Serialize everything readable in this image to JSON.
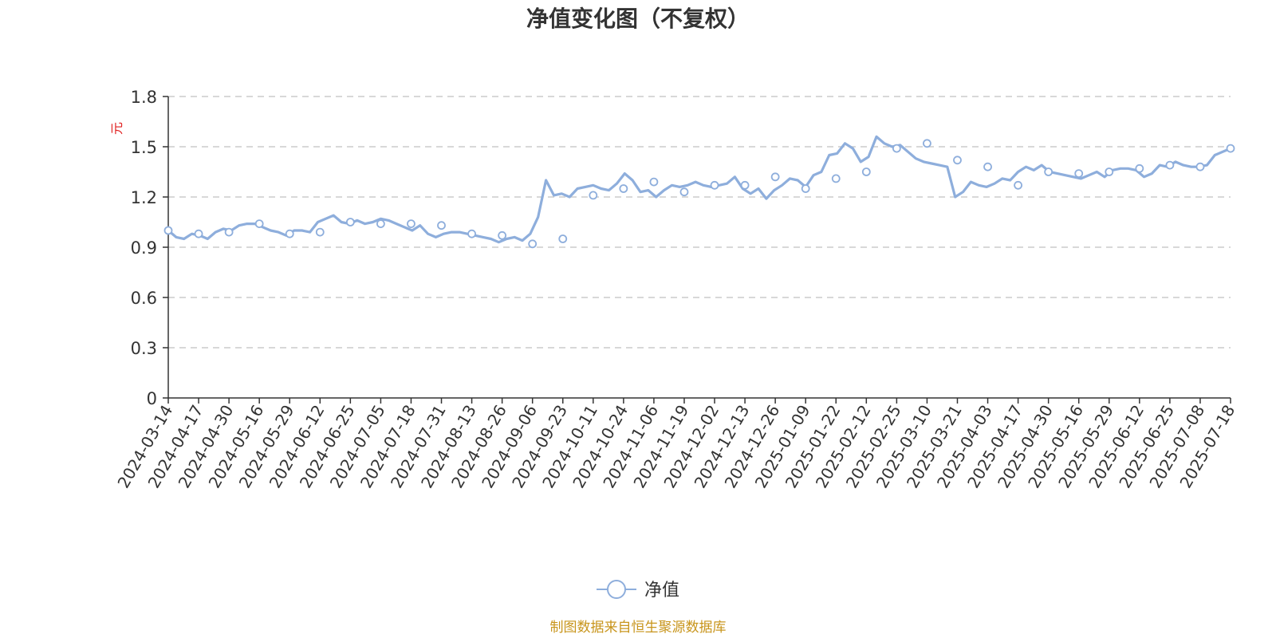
{
  "colors": {
    "line": "#8eaedc",
    "grid": "#cccccc",
    "axis": "#333333",
    "unit": "#e02020",
    "source": "#c8951c"
  },
  "legend": {
    "label": "净值",
    "icon": "line-circle-marker-icon"
  },
  "source_note": "制图数据来自恒生聚源数据库",
  "chart_data": {
    "type": "line",
    "title": "净值变化图（不复权）",
    "ylabel": "元",
    "xlabel": "",
    "ylim": [
      0,
      1.8
    ],
    "y_ticks": [
      "0",
      "0.3",
      "0.6",
      "0.9",
      "1.2",
      "1.5",
      "1.8"
    ],
    "grid": true,
    "legend_position": "bottom",
    "x_tick_labels": [
      "2024-03-14",
      "2024-04-17",
      "2024-04-30",
      "2024-05-16",
      "2024-05-29",
      "2024-06-12",
      "2024-06-25",
      "2024-07-05",
      "2024-07-18",
      "2024-07-31",
      "2024-08-13",
      "2024-08-26",
      "2024-09-06",
      "2024-09-23",
      "2024-10-11",
      "2024-10-24",
      "2024-11-06",
      "2024-11-19",
      "2024-12-02",
      "2024-12-13",
      "2024-12-26",
      "2025-01-09",
      "2025-01-22",
      "2025-02-12",
      "2025-02-25",
      "2025-03-10",
      "2025-03-21",
      "2025-04-03",
      "2025-04-17",
      "2025-04-30",
      "2025-05-16",
      "2025-05-29",
      "2025-06-12",
      "2025-06-25",
      "2025-07-08",
      "2025-07-18"
    ],
    "series": [
      {
        "name": "净值",
        "values": [
          1.0,
          0.96,
          0.95,
          0.98,
          0.97,
          0.95,
          0.99,
          1.01,
          1.0,
          1.03,
          1.04,
          1.04,
          1.02,
          1.0,
          0.99,
          0.97,
          1.0,
          1.0,
          0.99,
          1.05,
          1.07,
          1.09,
          1.05,
          1.04,
          1.06,
          1.04,
          1.05,
          1.07,
          1.06,
          1.04,
          1.02,
          1.0,
          1.03,
          0.98,
          0.96,
          0.98,
          0.99,
          0.99,
          0.98,
          0.97,
          0.96,
          0.95,
          0.93,
          0.95,
          0.96,
          0.94,
          0.98,
          1.08,
          1.3,
          1.21,
          1.22,
          1.2,
          1.25,
          1.26,
          1.27,
          1.25,
          1.24,
          1.28,
          1.34,
          1.3,
          1.23,
          1.24,
          1.2,
          1.24,
          1.27,
          1.26,
          1.27,
          1.29,
          1.27,
          1.26,
          1.27,
          1.28,
          1.32,
          1.25,
          1.22,
          1.25,
          1.19,
          1.24,
          1.27,
          1.31,
          1.3,
          1.26,
          1.33,
          1.35,
          1.45,
          1.46,
          1.52,
          1.49,
          1.41,
          1.44,
          1.56,
          1.52,
          1.5,
          1.51,
          1.47,
          1.43,
          1.41,
          1.4,
          1.39,
          1.38,
          1.2,
          1.23,
          1.29,
          1.27,
          1.26,
          1.28,
          1.31,
          1.3,
          1.35,
          1.38,
          1.36,
          1.39,
          1.35,
          1.34,
          1.33,
          1.32,
          1.31,
          1.33,
          1.35,
          1.32,
          1.36,
          1.37,
          1.37,
          1.36,
          1.32,
          1.34,
          1.39,
          1.38,
          1.41,
          1.39,
          1.38,
          1.38,
          1.39,
          1.45,
          1.47,
          1.49
        ],
        "marked_points": [
          {
            "date": "2024-03-14",
            "value": 1.0
          },
          {
            "date": "2024-04-17",
            "value": 0.98
          },
          {
            "date": "2024-04-30",
            "value": 0.99
          },
          {
            "date": "2024-05-16",
            "value": 1.04
          },
          {
            "date": "2024-05-29",
            "value": 0.98
          },
          {
            "date": "2024-06-12",
            "value": 0.99
          },
          {
            "date": "2024-06-25",
            "value": 1.05
          },
          {
            "date": "2024-07-05",
            "value": 1.04
          },
          {
            "date": "2024-07-18",
            "value": 1.04
          },
          {
            "date": "2024-07-31",
            "value": 1.03
          },
          {
            "date": "2024-08-13",
            "value": 0.98
          },
          {
            "date": "2024-08-26",
            "value": 0.97
          },
          {
            "date": "2024-09-06",
            "value": 0.92
          },
          {
            "date": "2024-09-23",
            "value": 0.95
          },
          {
            "date": "2024-10-11",
            "value": 1.21
          },
          {
            "date": "2024-10-24",
            "value": 1.25
          },
          {
            "date": "2024-11-06",
            "value": 1.29
          },
          {
            "date": "2024-11-19",
            "value": 1.23
          },
          {
            "date": "2024-12-02",
            "value": 1.27
          },
          {
            "date": "2024-12-13",
            "value": 1.27
          },
          {
            "date": "2024-12-26",
            "value": 1.32
          },
          {
            "date": "2025-01-09",
            "value": 1.25
          },
          {
            "date": "2025-01-22",
            "value": 1.31
          },
          {
            "date": "2025-02-12",
            "value": 1.35
          },
          {
            "date": "2025-02-25",
            "value": 1.49
          },
          {
            "date": "2025-03-10",
            "value": 1.52
          },
          {
            "date": "2025-03-21",
            "value": 1.42
          },
          {
            "date": "2025-04-03",
            "value": 1.38
          },
          {
            "date": "2025-04-17",
            "value": 1.27
          },
          {
            "date": "2025-04-30",
            "value": 1.35
          },
          {
            "date": "2025-05-16",
            "value": 1.34
          },
          {
            "date": "2025-05-29",
            "value": 1.35
          },
          {
            "date": "2025-06-12",
            "value": 1.37
          },
          {
            "date": "2025-06-25",
            "value": 1.39
          },
          {
            "date": "2025-07-08",
            "value": 1.38
          },
          {
            "date": "2025-07-18",
            "value": 1.49
          }
        ]
      }
    ]
  }
}
